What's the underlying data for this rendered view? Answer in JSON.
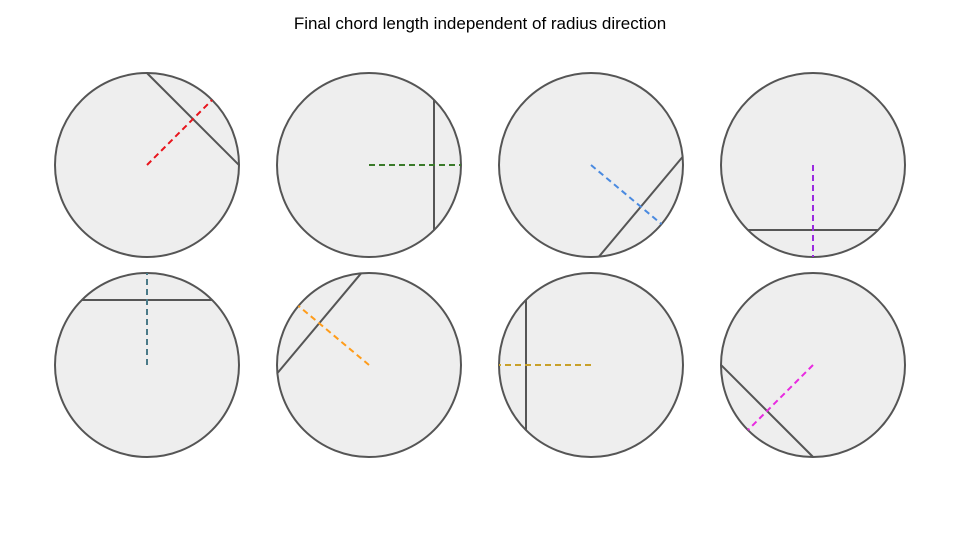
{
  "title": "Final chord length independent of radius direction",
  "colors": {
    "circle_fill": "#eeeeee",
    "circle_stroke": "#555555",
    "chord_stroke": "#555555"
  },
  "panels": [
    {
      "radius_direction_deg": 45,
      "radius_color": "#e8141c"
    },
    {
      "radius_direction_deg": 0,
      "radius_color": "#3a7a2a"
    },
    {
      "radius_direction_deg": -40,
      "radius_color": "#4a8ae0"
    },
    {
      "radius_direction_deg": -90,
      "radius_color": "#9a2ae0"
    },
    {
      "radius_direction_deg": 90,
      "radius_color": "#4a7a88"
    },
    {
      "radius_direction_deg": 140,
      "radius_color": "#ff9c1a"
    },
    {
      "radius_direction_deg": 180,
      "radius_color": "#c8a02a"
    },
    {
      "radius_direction_deg": -135,
      "radius_color": "#e82ae0"
    }
  ]
}
